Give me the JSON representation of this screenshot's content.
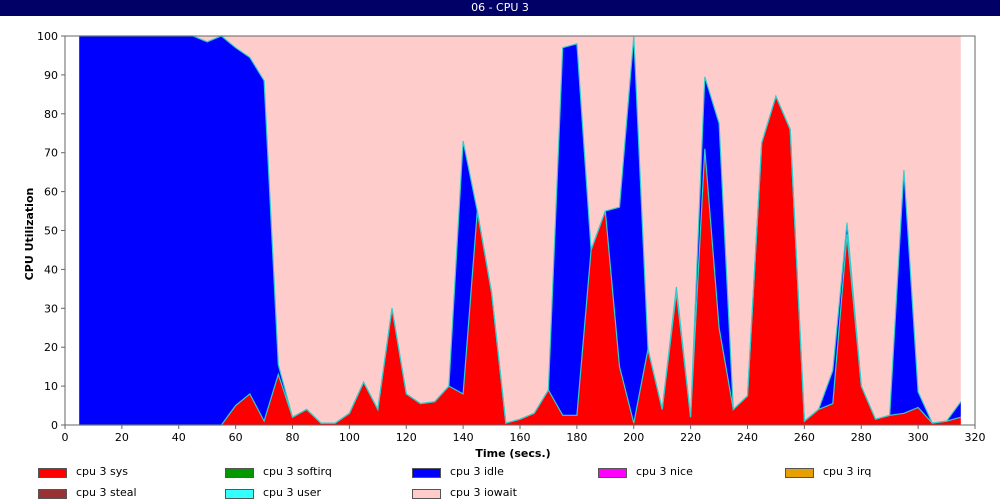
{
  "window": {
    "title": "06 - CPU 3"
  },
  "chart_data": {
    "type": "area",
    "stacked": true,
    "xlabel": "Time (secs.)",
    "ylabel": "CPU Utilization",
    "xlim": [
      0,
      320
    ],
    "ylim": [
      0,
      100
    ],
    "xticks": [
      0,
      20,
      40,
      60,
      80,
      100,
      120,
      140,
      160,
      180,
      200,
      220,
      240,
      260,
      280,
      300,
      320
    ],
    "yticks": [
      0,
      10,
      20,
      30,
      40,
      50,
      60,
      70,
      80,
      90,
      100
    ],
    "grid": false,
    "legend_position": "bottom",
    "x": [
      5,
      10,
      15,
      20,
      25,
      30,
      35,
      40,
      45,
      50,
      55,
      60,
      65,
      70,
      75,
      80,
      85,
      90,
      95,
      100,
      105,
      110,
      115,
      120,
      125,
      130,
      135,
      140,
      145,
      150,
      155,
      160,
      165,
      170,
      175,
      180,
      185,
      190,
      195,
      200,
      205,
      210,
      215,
      220,
      225,
      230,
      235,
      240,
      245,
      250,
      255,
      260,
      265,
      270,
      275,
      280,
      285,
      290,
      295,
      300,
      305,
      310,
      315
    ],
    "series": [
      {
        "name": "cpu 3 sys",
        "color": "#ff0000",
        "values": [
          0,
          0,
          0,
          0,
          0,
          0,
          0,
          0,
          0,
          0,
          0,
          5,
          8,
          1,
          13,
          2,
          4,
          0.5,
          0.5,
          3,
          11,
          4,
          30,
          8,
          5.5,
          6,
          10,
          8,
          55,
          34,
          0.5,
          1.5,
          3,
          9,
          2.5,
          2.5,
          45,
          55,
          15,
          0.5,
          19.5,
          4,
          34,
          2,
          71,
          25,
          4,
          7.5,
          72.5,
          84.5,
          76,
          1,
          4,
          5.5,
          49,
          10,
          1.5,
          2.5,
          3,
          4.5,
          0.5,
          1,
          2
        ]
      },
      {
        "name": "cpu 3 softirq",
        "color": "#009900",
        "values": [
          0,
          0,
          0,
          0,
          0,
          0,
          0,
          0,
          0,
          0,
          0,
          0,
          0,
          0,
          0,
          0,
          0,
          0,
          0,
          0,
          0,
          0,
          0,
          0,
          0,
          0,
          0,
          0,
          0,
          0,
          0,
          0,
          0,
          0,
          0,
          0,
          0,
          0,
          0,
          0,
          0,
          0,
          0,
          0,
          0,
          0,
          0,
          0,
          0,
          0,
          0,
          0,
          0,
          0,
          0,
          0,
          0,
          0,
          0,
          0,
          0,
          0,
          0
        ]
      },
      {
        "name": "cpu 3 idle",
        "color": "#0000ff",
        "values": [
          100,
          100,
          100,
          100,
          100,
          100,
          100,
          100,
          100,
          98.5,
          100,
          92,
          86.5,
          87.5,
          2.5,
          0,
          0,
          0,
          0,
          0,
          0,
          0,
          0,
          0,
          0,
          0,
          0,
          65,
          0,
          0,
          0,
          0,
          0,
          0,
          94.5,
          95.5,
          0,
          0,
          41,
          99.5,
          0,
          0,
          1.5,
          0,
          18.5,
          52.5,
          0,
          0,
          0,
          0,
          0,
          0,
          0,
          8.5,
          3,
          0,
          0,
          0,
          62.5,
          4,
          0,
          0,
          4
        ]
      },
      {
        "name": "cpu 3 nice",
        "color": "#ff00ff",
        "values": [
          0,
          0,
          0,
          0,
          0,
          0,
          0,
          0,
          0,
          0,
          0,
          0,
          0,
          0,
          0,
          0,
          0,
          0,
          0,
          0,
          0,
          0,
          0,
          0,
          0,
          0,
          0,
          0,
          0,
          0,
          0,
          0,
          0,
          0,
          0,
          0,
          0,
          0,
          0,
          0,
          0,
          0,
          0,
          0,
          0,
          0,
          0,
          0,
          0,
          0,
          0,
          0,
          0,
          0,
          0,
          0,
          0,
          0,
          0,
          0,
          0,
          0,
          0
        ]
      },
      {
        "name": "cpu 3 irq",
        "color": "#e6a000",
        "values": [
          0,
          0,
          0,
          0,
          0,
          0,
          0,
          0,
          0,
          0,
          0,
          0,
          0,
          0,
          0,
          0,
          0,
          0,
          0,
          0,
          0,
          0,
          0,
          0,
          0,
          0,
          0,
          0,
          0,
          0,
          0,
          0,
          0,
          0,
          0,
          0,
          0,
          0,
          0,
          0,
          0,
          0,
          0,
          0,
          0,
          0,
          0,
          0,
          0,
          0,
          0,
          0,
          0,
          0,
          0,
          0,
          0,
          0,
          0,
          0,
          0,
          0,
          0
        ]
      },
      {
        "name": "cpu 3 steal",
        "color": "#993333",
        "values": [
          0,
          0,
          0,
          0,
          0,
          0,
          0,
          0,
          0,
          0,
          0,
          0,
          0,
          0,
          0,
          0,
          0,
          0,
          0,
          0,
          0,
          0,
          0,
          0,
          0,
          0,
          0,
          0,
          0,
          0,
          0,
          0,
          0,
          0,
          0,
          0,
          0,
          0,
          0,
          0,
          0,
          0,
          0,
          0,
          0,
          0,
          0,
          0,
          0,
          0,
          0,
          0,
          0,
          0,
          0,
          0,
          0,
          0,
          0,
          0,
          0,
          0,
          0
        ]
      },
      {
        "name": "cpu 3 user",
        "color": "#33ffff",
        "values": [
          0,
          0,
          0,
          0,
          0,
          0,
          0,
          0,
          0,
          0,
          0,
          0,
          0,
          0,
          0,
          0,
          0,
          0,
          0,
          0,
          0,
          0,
          0,
          0,
          0,
          0,
          0,
          0,
          0,
          0,
          0,
          0,
          0,
          0,
          0,
          0,
          0,
          0,
          0,
          0,
          0,
          0,
          0,
          0,
          0,
          0,
          0,
          0,
          0,
          0,
          0,
          0,
          0,
          0,
          0,
          0,
          0,
          0,
          0,
          0,
          0,
          0,
          0
        ]
      },
      {
        "name": "cpu 3 iowait",
        "color": "#ffcccc",
        "values": [
          0,
          0,
          0,
          0,
          0,
          0,
          0,
          0,
          0,
          1.5,
          0,
          3,
          5.5,
          11.5,
          84.5,
          98,
          96,
          99.5,
          99.5,
          97,
          89,
          96,
          70,
          92,
          94.5,
          94,
          90,
          27,
          45,
          66,
          99.5,
          98.5,
          97,
          91,
          3,
          2,
          55,
          45,
          44,
          0,
          80.5,
          96,
          64.5,
          98,
          10.5,
          22.5,
          96,
          92.5,
          27.5,
          15.5,
          24,
          99,
          96,
          86,
          48,
          90,
          98.5,
          97.5,
          34.5,
          91.5,
          99.5,
          99,
          94
        ]
      }
    ]
  }
}
